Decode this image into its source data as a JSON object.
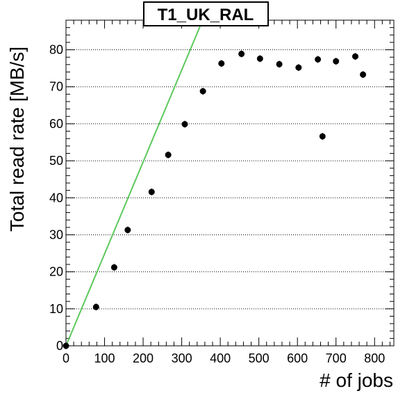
{
  "chart_data": {
    "type": "scatter",
    "title": "T1_UK_RAL",
    "xlabel": "# of jobs",
    "ylabel": "Total read rate [MB/s]",
    "xlim": [
      0,
      850
    ],
    "ylim": [
      0,
      88
    ],
    "xticks": [
      0,
      100,
      200,
      300,
      400,
      500,
      600,
      700,
      800
    ],
    "yticks": [
      0,
      10,
      20,
      30,
      40,
      50,
      60,
      70,
      80
    ],
    "grid": "horizontal dotted",
    "colors": {
      "points": "#000000",
      "line": "#5cc85c",
      "axes": "#000000"
    },
    "series": [
      {
        "type": "scatter",
        "x": [
          0,
          78,
          125,
          160,
          222,
          265,
          308,
          355,
          403,
          455,
          503,
          553,
          603,
          653,
          665,
          700,
          750,
          770
        ],
        "y": [
          0,
          10.5,
          21.2,
          31.3,
          41.6,
          51.6,
          59.9,
          68.8,
          76.3,
          78.9,
          77.6,
          76.1,
          75.2,
          77.4,
          56.6,
          76.9,
          78.2,
          73.3
        ]
      },
      {
        "type": "line",
        "x": [
          0,
          353
        ],
        "y": [
          0,
          87.7
        ]
      }
    ]
  }
}
